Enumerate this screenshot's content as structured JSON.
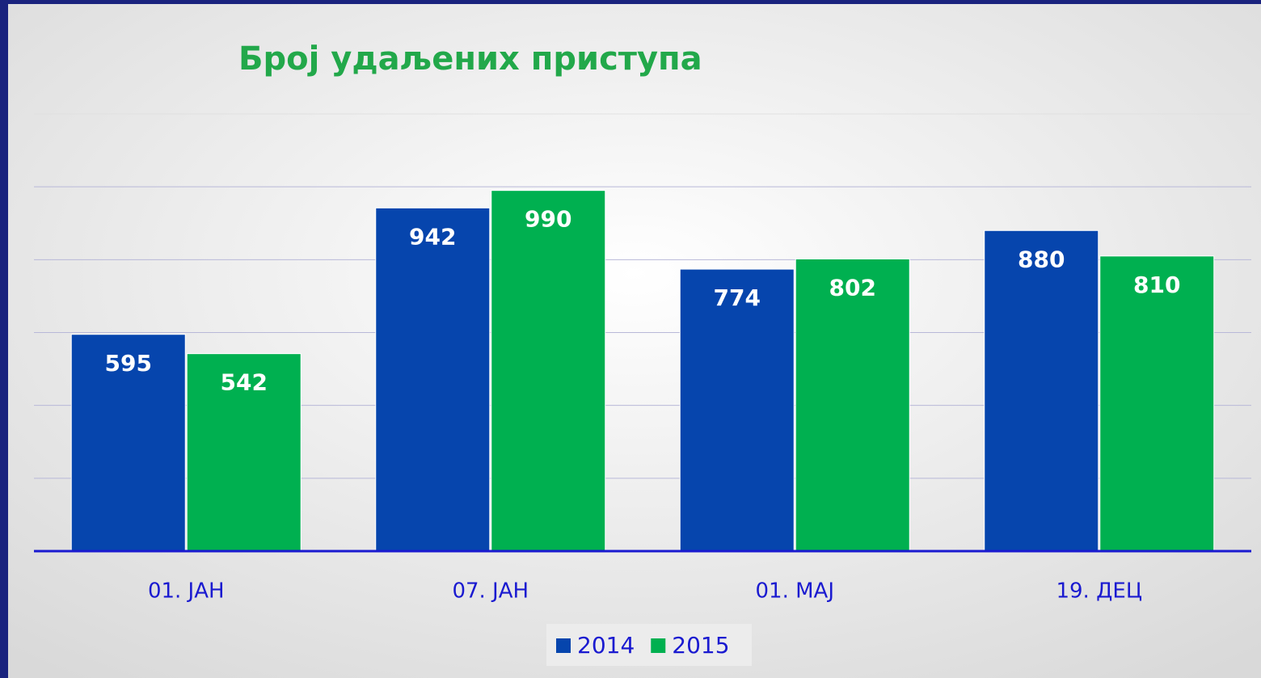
{
  "chart_data": {
    "type": "bar",
    "title": "Број удаљених приступа",
    "categories": [
      "01. ЈАН",
      "07. ЈАН",
      "01. МАЈ",
      "19. ДЕЦ"
    ],
    "series": [
      {
        "name": "2014",
        "color": "#0645ad",
        "values": [
          595,
          942,
          774,
          880
        ]
      },
      {
        "name": "2015",
        "color": "#00b050",
        "values": [
          542,
          990,
          802,
          810
        ]
      }
    ],
    "ylim": [
      0,
      1200
    ],
    "yticks": [
      0,
      200,
      400,
      600,
      800,
      1000,
      1200
    ],
    "grid": true,
    "legend": "bottom"
  }
}
